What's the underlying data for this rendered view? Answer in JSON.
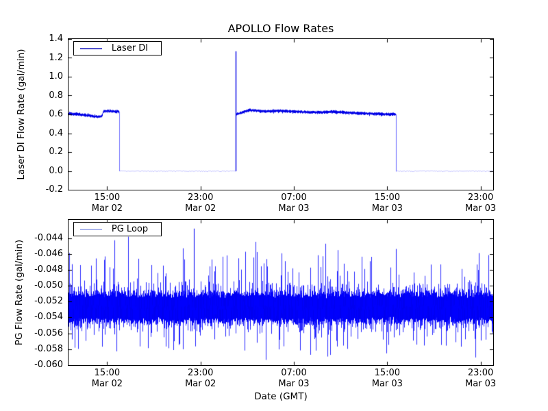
{
  "figure": {
    "title": "APOLLO Flow Rates",
    "background": "#ffffff",
    "accent_line_color": "#0000ee"
  },
  "chart_data": [
    {
      "id": "laser",
      "type": "line",
      "title": "APOLLO Flow Rates",
      "ylabel": "Laser DI Flow Rate (gal/min)",
      "legend": {
        "label": "Laser DI",
        "sample_color": "#5050cd",
        "position": "upper-left"
      },
      "line_color": "#0000e6",
      "flat_line_color": "rgba(85,85,255,0.85)",
      "grid": false,
      "ylim": [
        -0.2,
        1.4
      ],
      "yticks": [
        {
          "v": -0.2,
          "label": "-0.2"
        },
        {
          "v": 0.0,
          "label": "0.0"
        },
        {
          "v": 0.2,
          "label": "0.2"
        },
        {
          "v": 0.4,
          "label": "0.4"
        },
        {
          "v": 0.6,
          "label": "0.6"
        },
        {
          "v": 0.8,
          "label": "0.8"
        },
        {
          "v": 1.0,
          "label": "1.0"
        },
        {
          "v": 1.2,
          "label": "1.2"
        },
        {
          "v": 1.4,
          "label": "1.4"
        }
      ],
      "x_hours_range": [
        11.69,
        48.08
      ],
      "xticks": [
        {
          "hour": 15,
          "time": "15:00",
          "date": "Mar 02"
        },
        {
          "hour": 23,
          "time": "23:00",
          "date": "Mar 02"
        },
        {
          "hour": 31,
          "time": "07:00",
          "date": "Mar 03"
        },
        {
          "hour": 39,
          "time": "15:00",
          "date": "Mar 03"
        },
        {
          "hour": 47,
          "time": "23:00",
          "date": "Mar 03"
        }
      ],
      "noise_halfwidth": 0.014,
      "segments": [
        {
          "type": "noisy",
          "t0": 11.69,
          "t1": 16.03,
          "levels": [
            [
              11.69,
              0.608
            ],
            [
              12.6,
              0.602
            ],
            [
              13.4,
              0.588
            ],
            [
              14.1,
              0.576
            ],
            [
              14.55,
              0.582
            ],
            [
              14.7,
              0.636
            ],
            [
              15.5,
              0.632
            ],
            [
              16.03,
              0.63
            ]
          ]
        },
        {
          "type": "flat",
          "t0": 16.03,
          "t1": 26.01,
          "level": -0.003,
          "noise": 0.0025
        },
        {
          "type": "noisy",
          "t0": 26.01,
          "t1": 39.75,
          "levels": [
            [
              26.01,
              0.598
            ],
            [
              27.2,
              0.645
            ],
            [
              28.5,
              0.632
            ],
            [
              30.0,
              0.638
            ],
            [
              31.5,
              0.627
            ],
            [
              33.0,
              0.62
            ],
            [
              34.5,
              0.628
            ],
            [
              36.5,
              0.612
            ],
            [
              38.0,
              0.606
            ],
            [
              39.75,
              0.6
            ]
          ]
        },
        {
          "type": "flat",
          "t0": 39.75,
          "t1": 48.08,
          "level": -0.003,
          "noise": 0.0025
        }
      ],
      "events": [
        {
          "type": "drop",
          "t": 16.03,
          "from": 0.63,
          "to": -0.003
        },
        {
          "type": "spike",
          "t": 26.01,
          "from": -0.003,
          "to": 1.27
        },
        {
          "type": "drop",
          "t": 39.75,
          "from": 0.6,
          "to": -0.003
        }
      ]
    },
    {
      "id": "pg",
      "type": "line",
      "ylabel": "PG Flow Rate (gal/min)",
      "xlabel": "Date (GMT)",
      "legend": {
        "label": "PG Loop",
        "sample_color": "#aab4ec",
        "position": "upper-left"
      },
      "line_color": "#0000f0",
      "spike_color": "rgba(0,0,255,0.85)",
      "grid": false,
      "ylim": [
        -0.06,
        -0.0417
      ],
      "yticks": [
        {
          "v": -0.044,
          "label": "-0.044"
        },
        {
          "v": -0.046,
          "label": "-0.046"
        },
        {
          "v": -0.048,
          "label": "-0.048"
        },
        {
          "v": -0.05,
          "label": "-0.050"
        },
        {
          "v": -0.052,
          "label": "-0.052"
        },
        {
          "v": -0.054,
          "label": "-0.054"
        },
        {
          "v": -0.056,
          "label": "-0.056"
        },
        {
          "v": -0.058,
          "label": "-0.058"
        },
        {
          "v": -0.06,
          "label": "-0.060"
        }
      ],
      "x_hours_range": [
        11.69,
        48.08
      ],
      "xticks": [
        {
          "hour": 15,
          "time": "15:00",
          "date": "Mar 02"
        },
        {
          "hour": 23,
          "time": "23:00",
          "date": "Mar 02"
        },
        {
          "hour": 31,
          "time": "07:00",
          "date": "Mar 03"
        },
        {
          "hour": 39,
          "time": "15:00",
          "date": "Mar 03"
        },
        {
          "hour": 47,
          "time": "23:00",
          "date": "Mar 03"
        }
      ],
      "band": {
        "center": -0.05275,
        "center_jitter": 0.0004,
        "half_width": 0.00155,
        "half_jitter": 0.0004
      },
      "spikes_up": {
        "p_small": 0.55,
        "small_min": 0.001,
        "small_max": 0.0032,
        "p_large": 0.12,
        "large_max": 0.007,
        "p_xl": 0.015,
        "xl_max": 0.009
      },
      "spikes_down": {
        "p_small": 0.55,
        "small_min": 0.001,
        "small_max": 0.003,
        "p_large": 0.1,
        "large_max": 0.0052,
        "p_xl": 0.012,
        "xl_max": 0.0065
      },
      "max_spike": {
        "t": 22.43,
        "value": -0.0428
      }
    }
  ]
}
